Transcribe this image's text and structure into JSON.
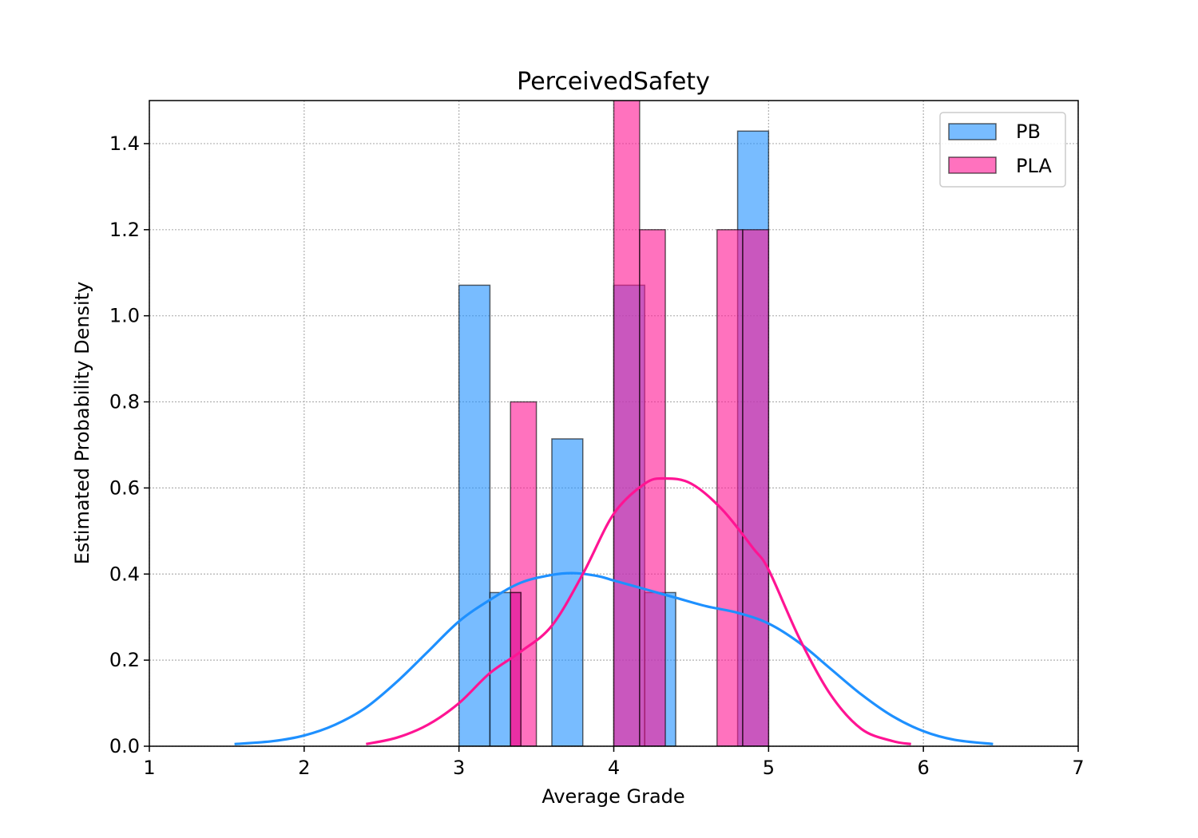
{
  "chart_data": {
    "type": "bar",
    "title": "PerceivedSafety",
    "xlabel": "Average Grade",
    "ylabel": "Estimated Probability Density",
    "xlim": [
      1,
      7
    ],
    "ylim": [
      0,
      1.5
    ],
    "xticks": [
      "1",
      "2",
      "3",
      "4",
      "5",
      "6",
      "7"
    ],
    "yticks": [
      "0.0",
      "0.2",
      "0.4",
      "0.6",
      "0.8",
      "1.0",
      "1.2",
      "1.4"
    ],
    "grid": true,
    "legend_position": "top-right",
    "series": [
      {
        "name": "PB",
        "color": "#1e90ff",
        "histogram": [
          {
            "x0": 3.0,
            "x1": 3.2,
            "density": 1.071
          },
          {
            "x0": 3.2,
            "x1": 3.4,
            "density": 0.357
          },
          {
            "x0": 3.6,
            "x1": 3.8,
            "density": 0.714
          },
          {
            "x0": 4.0,
            "x1": 4.2,
            "density": 1.071
          },
          {
            "x0": 4.2,
            "x1": 4.4,
            "density": 0.357
          },
          {
            "x0": 4.8,
            "x1": 5.0,
            "density": 1.429
          }
        ],
        "kde": {
          "x": [
            1.55,
            1.8,
            2.0,
            2.2,
            2.4,
            2.6,
            2.8,
            3.0,
            3.2,
            3.4,
            3.6,
            3.75,
            3.9,
            4.0,
            4.2,
            4.4,
            4.6,
            4.8,
            5.0,
            5.2,
            5.4,
            5.6,
            5.8,
            6.0,
            6.2,
            6.45
          ],
          "y": [
            0.005,
            0.012,
            0.025,
            0.05,
            0.09,
            0.15,
            0.22,
            0.29,
            0.34,
            0.38,
            0.398,
            0.402,
            0.395,
            0.385,
            0.365,
            0.345,
            0.325,
            0.31,
            0.285,
            0.24,
            0.18,
            0.12,
            0.07,
            0.035,
            0.015,
            0.005
          ]
        }
      },
      {
        "name": "PLA",
        "color": "#ff1493",
        "histogram": [
          {
            "x0": 3.333,
            "x1": 3.5,
            "density": 0.8
          },
          {
            "x0": 3.333,
            "x1": 3.4,
            "density": 0.357
          },
          {
            "x0": 4.0,
            "x1": 4.167,
            "density": 1.6
          },
          {
            "x0": 4.167,
            "x1": 4.333,
            "density": 1.2
          },
          {
            "x0": 4.667,
            "x1": 4.833,
            "density": 1.2
          },
          {
            "x0": 4.833,
            "x1": 5.0,
            "density": 1.2
          }
        ],
        "kde": {
          "x": [
            2.4,
            2.6,
            2.8,
            3.0,
            3.2,
            3.4,
            3.6,
            3.8,
            4.0,
            4.2,
            4.33,
            4.5,
            4.7,
            4.9,
            5.0,
            5.2,
            5.4,
            5.6,
            5.8,
            5.92
          ],
          "y": [
            0.005,
            0.02,
            0.05,
            0.1,
            0.17,
            0.22,
            0.28,
            0.4,
            0.54,
            0.61,
            0.622,
            0.61,
            0.55,
            0.46,
            0.41,
            0.25,
            0.12,
            0.04,
            0.012,
            0.005
          ]
        }
      }
    ]
  }
}
